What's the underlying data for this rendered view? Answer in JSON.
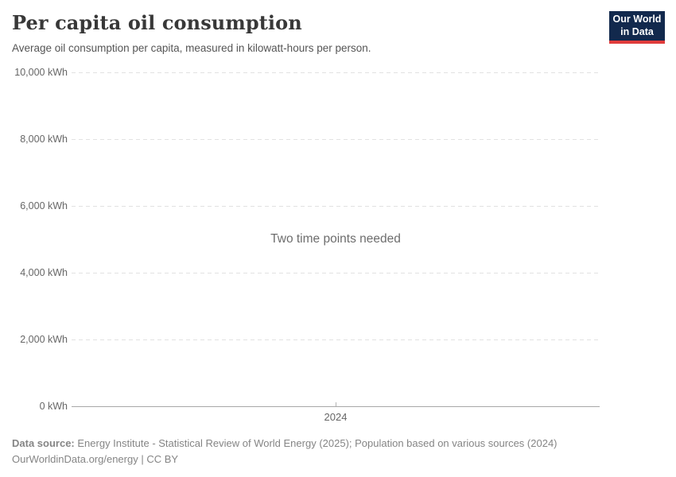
{
  "header": {
    "title": "Per capita oil consumption",
    "subtitle": "Average oil consumption per capita, measured in kilowatt-hours per person.",
    "logo": {
      "line1": "Our World",
      "line2": "in Data",
      "bg_color": "#12294d",
      "accent_color": "#e03c3c"
    }
  },
  "chart_data": {
    "type": "line",
    "title": "Per capita oil consumption",
    "subtitle": "Average oil consumption per capita, measured in kilowatt-hours per person.",
    "message": "Two time points needed",
    "series": [],
    "x": [],
    "xticks": [
      "2024"
    ],
    "yticks": [
      {
        "value": 0,
        "label": "0 kWh"
      },
      {
        "value": 2000,
        "label": "2,000 kWh"
      },
      {
        "value": 4000,
        "label": "4,000 kWh"
      },
      {
        "value": 6000,
        "label": "6,000 kWh"
      },
      {
        "value": 8000,
        "label": "8,000 kWh"
      },
      {
        "value": 10000,
        "label": "10,000 kWh"
      }
    ],
    "ylim": [
      0,
      10000
    ],
    "ylabel": "",
    "xlabel": "",
    "grid": true,
    "gridline_color": "#e2e2e2",
    "axis_color": "#a8a8a8"
  },
  "footer": {
    "source_label": "Data source:",
    "source_text": "Energy Institute - Statistical Review of World Energy (2025); Population based on various sources (2024)",
    "license": "OurWorldinData.org/energy | CC BY"
  }
}
